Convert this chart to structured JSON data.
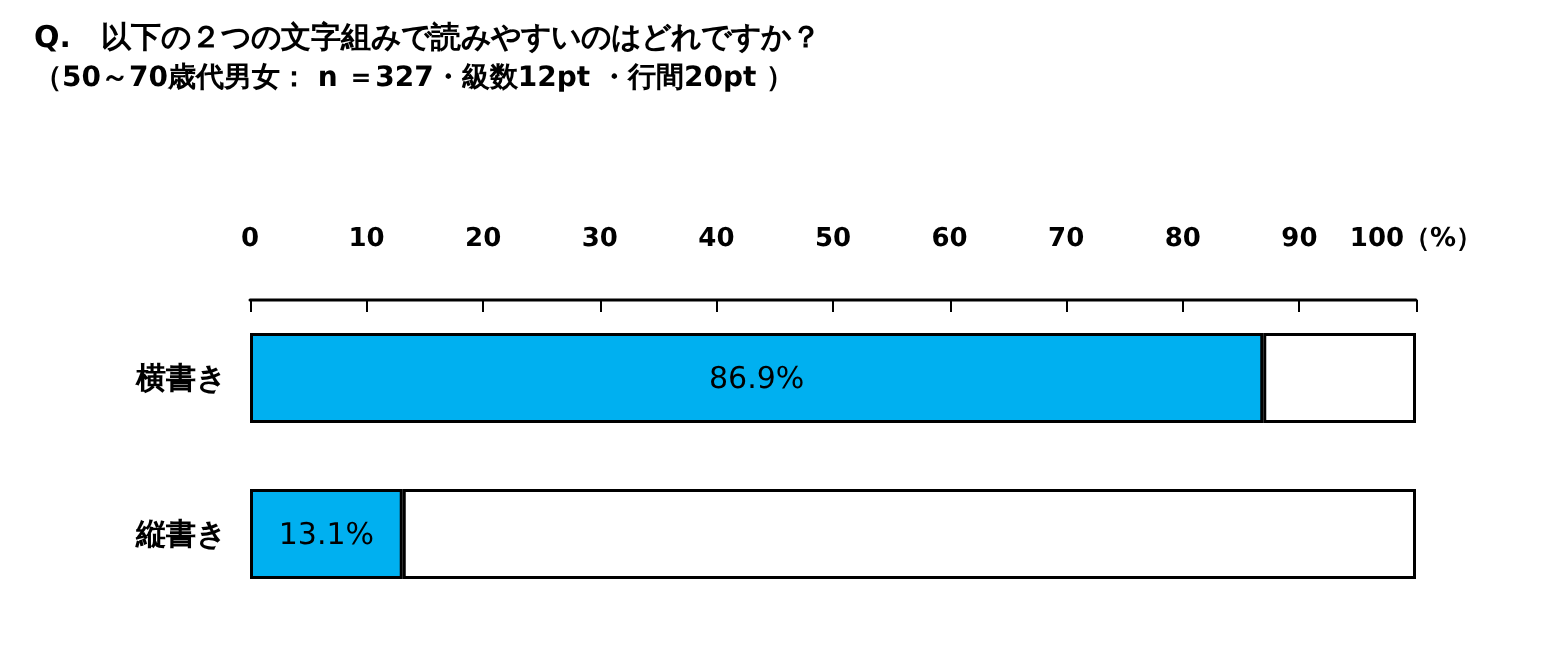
{
  "chart_data": {
    "type": "bar",
    "orientation": "horizontal",
    "stacked": true,
    "title": "Q.　以下の２つの文字組みで読みやすいのはどれですか？",
    "subtitle": "（50～70歳代男女： n ＝327・級数12pt ・行間20pt ）",
    "categories": [
      "横書き",
      "縦書き"
    ],
    "series": [
      {
        "color": "#00b0f0",
        "values": [
          86.9,
          13.1
        ],
        "value_labels": [
          "86.9%",
          "13.1%"
        ]
      },
      {
        "color": "#ffffff",
        "values": [
          13.1,
          86.9
        ]
      }
    ],
    "xlim": [
      0,
      100
    ],
    "xticks": [
      0,
      10,
      20,
      30,
      40,
      50,
      60,
      70,
      80,
      90,
      {
        "value": 100,
        "label": "100（%）"
      }
    ],
    "grid": false
  }
}
